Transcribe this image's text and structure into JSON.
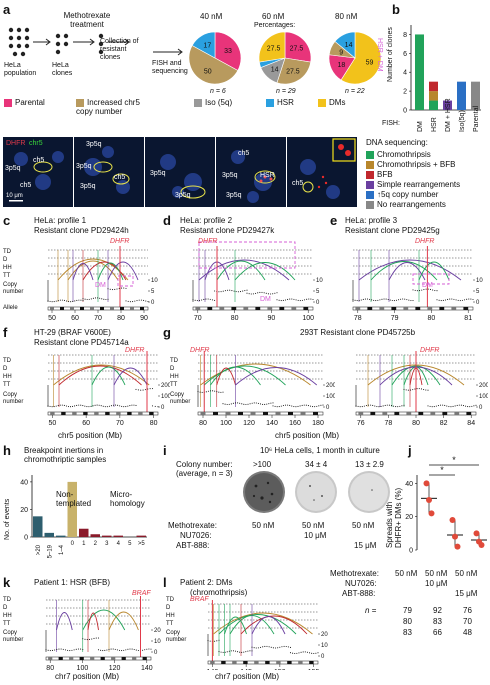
{
  "colors": {
    "parental": "#e8347a",
    "chr5": "#b89a5e",
    "iso": "#999999",
    "hsr": "#2aa0e0",
    "dms": "#f2c21b",
    "chromothripsis": "#21a35a",
    "chromo_bfb": "#b8862b",
    "bfb": "#c0282d",
    "simple": "#6a3fa0",
    "copy5q": "#2a6fc4",
    "norearr": "#888888"
  },
  "panels": {
    "a": "a",
    "b": "b",
    "c": "c",
    "d": "d",
    "e": "e",
    "f": "f",
    "g": "g",
    "h": "h",
    "i": "i",
    "j": "j",
    "k": "k",
    "l": "l"
  },
  "a": {
    "treatment": "Methotrexate\ntreatment",
    "collection": "Collection of\nresistant\nclones",
    "fish": "FISH and\nsequencing",
    "hela_pop": "HeLa\npopulation",
    "hela_clones": "HeLa\nclones",
    "pct": "Percentages:",
    "pies": [
      {
        "title": "40 nM",
        "n": "n = 6",
        "slices": [
          {
            "k": "parental",
            "v": 33,
            "label": "33"
          },
          {
            "k": "chr5",
            "v": 50,
            "label": "50"
          },
          {
            "k": "hsr",
            "v": 17,
            "label": "17"
          }
        ]
      },
      {
        "title": "60 nM",
        "n": "n = 29",
        "slices": [
          {
            "k": "parental",
            "v": 27.5,
            "label": "27.5"
          },
          {
            "k": "chr5",
            "v": 27.5,
            "label": "27.5"
          },
          {
            "k": "iso",
            "v": 14,
            "label": "14"
          },
          {
            "k": "hsr",
            "v": 3.5,
            "label": ""
          },
          {
            "k": "dms",
            "v": 27.5,
            "label": "27.5"
          }
        ]
      },
      {
        "title": "80 nM",
        "n": "n = 22",
        "slices": [
          {
            "k": "dms",
            "v": 59,
            "label": "59"
          },
          {
            "k": "parental",
            "v": 18,
            "label": "18"
          },
          {
            "k": "chr5",
            "v": 9,
            "label": "9"
          },
          {
            "k": "hsr",
            "v": 14,
            "label": "14"
          }
        ]
      }
    ],
    "hsr_dm": "HSR + DM",
    "legend": [
      {
        "k": "parental",
        "label": "Parental"
      },
      {
        "k": "chr5",
        "label": "Increased chr5\ncopy number"
      },
      {
        "k": "iso",
        "label": "Iso (5q)"
      },
      {
        "k": "hsr",
        "label": "HSR"
      },
      {
        "k": "dms",
        "label": "DMs"
      }
    ]
  },
  "b": {
    "ylabel": "Number of clones",
    "ticks": [
      "0",
      "2",
      "4",
      "6",
      "8"
    ],
    "fish": "FISH:",
    "chart_data": {
      "type": "bar",
      "categories": [
        "DM",
        "HSR",
        "DM + HSR",
        "Iso(5q)",
        "Parental"
      ],
      "values": [
        8,
        3,
        1,
        3,
        3
      ],
      "ylim": [
        0,
        9
      ]
    }
  },
  "micro": {
    "dhfr": "DHFR",
    "chr5": "chr5",
    "labels": [
      "3p5q",
      "ch5",
      "ch5",
      "3p5q",
      "3p5q",
      "3p5q",
      "ch5",
      "3p5q",
      "3p5q",
      "3p5q",
      "ch5",
      "HSR",
      "3p5q",
      "ch5"
    ],
    "scale": "10 μm"
  },
  "seq_legend": {
    "title": "DNA sequencing:",
    "items": [
      {
        "k": "chromothripsis",
        "label": "Chromothripsis"
      },
      {
        "k": "chromo_bfb",
        "label": "Chromothripsis + BFB"
      },
      {
        "k": "bfb",
        "label": "BFB"
      },
      {
        "k": "simple",
        "label": "Simple rearrangements"
      },
      {
        "k": "copy5q",
        "label": "↑5q copy number"
      },
      {
        "k": "norearr",
        "label": "No rearrangements"
      }
    ]
  },
  "c": {
    "t1": "HeLa: profile 1",
    "t2": "Resistant clone PD29424h",
    "xt": [
      "50",
      "60",
      "70",
      "80",
      "90"
    ]
  },
  "d": {
    "t1": "HeLa: profile 2",
    "t2": "Resistant clone PD29427k",
    "xt": [
      "70",
      "80",
      "90",
      "100"
    ]
  },
  "e": {
    "t1": "HeLa: profile 3",
    "t2": "Resistant clone PD29425g",
    "xt": [
      "78",
      "79",
      "80",
      "81"
    ]
  },
  "f": {
    "t1": "HT-29 (BRAF V600E)",
    "t2": "Resistant clone PD45714a",
    "xt": [
      "50",
      "60",
      "70",
      "80"
    ]
  },
  "g": {
    "t1": "293T   Resistant clone PD45725b",
    "xt1": [
      "80",
      "100",
      "120",
      "140",
      "160",
      "180"
    ],
    "xt2": [
      "76",
      "78",
      "80",
      "82",
      "84"
    ]
  },
  "rowlab": {
    "td": "TD",
    "d": "D",
    "hh": "HH",
    "tt": "TT",
    "copy": "Copy\nnumber",
    "allele": "Allele",
    "dhfr": "DHFR",
    "dm": "DM",
    "braf": "BRAF"
  },
  "yticks": {
    "c": [
      "10",
      "5",
      "0"
    ],
    "d": [
      "10",
      "5",
      "0"
    ],
    "e": [
      "10",
      "5",
      "0"
    ],
    "f": [
      "200",
      "100",
      "0"
    ],
    "g": [
      "200",
      "100",
      "0"
    ],
    "k": [
      "20",
      "10",
      "0"
    ],
    "l": [
      "20",
      "10",
      "0"
    ]
  },
  "xlab5": "chr5 position (Mb)",
  "xlab7": "chr7 position (Mb)",
  "h": {
    "title": "Breakpoint inertions in\nchromothriptic samples",
    "ylabel": "No. of events",
    "nt": "Non-\ntemplated",
    "mh": "Micro-\nhomology",
    "chart_data": {
      "type": "bar",
      "categories": [
        ">20",
        "5–19",
        "1–4",
        "0",
        "1",
        "2",
        "3",
        "4",
        "5",
        ">5"
      ],
      "values": [
        15,
        3,
        1,
        40,
        6,
        2,
        1,
        1,
        0,
        1
      ],
      "yticks": [
        "0",
        "20",
        "40"
      ],
      "ylim": [
        0,
        45
      ]
    }
  },
  "i": {
    "title": "10⁶ HeLa cells, 1 month in culture",
    "colony": "Colony number:\n(average, n = 3)",
    "counts": [
      ">100",
      "34 ± 4",
      "13 ± 2.9"
    ],
    "mtx": "Methotrexate:",
    "nu": "NU7026:",
    "abt": "ABT-888:",
    "mtx_v": [
      "50 nM",
      "50 nM",
      "50 nM"
    ],
    "nu_v": "10 μM",
    "abt_v": "15 μM"
  },
  "j": {
    "ylabel": "Spreads with\nDHFR+ DMs (%)",
    "yt": [
      "0",
      "20",
      "40"
    ],
    "star": "*",
    "chart_data": {
      "type": "scatter",
      "categories": [
        "MTX",
        "MTX+NU7026",
        "MTX+NU7026+ABT-888"
      ],
      "means": [
        31,
        9,
        6
      ],
      "points": [
        [
          40,
          30,
          22
        ],
        [
          18,
          8,
          2
        ],
        [
          10,
          5,
          3
        ]
      ]
    },
    "mtx": "Methotrexate:",
    "nu": "NU7026:",
    "abt": "ABT-888:",
    "mtx_v": [
      "50 nM",
      "50 nM",
      "50 nM"
    ],
    "nu_v": "10 μM",
    "abt_v": "15 μM",
    "n": "n =",
    "nrows": [
      [
        "79",
        "92",
        "76"
      ],
      [
        "80",
        "83",
        "70"
      ],
      [
        "83",
        "66",
        "48"
      ]
    ]
  },
  "k": {
    "title": "Patient 1: HSR (BFB)",
    "xt": [
      "80",
      "100",
      "120",
      "140"
    ]
  },
  "l": {
    "title": "Patient 2: DMs",
    "sub": "(chromothripsis)",
    "xt": [
      "140",
      "145",
      "150",
      "155"
    ]
  }
}
